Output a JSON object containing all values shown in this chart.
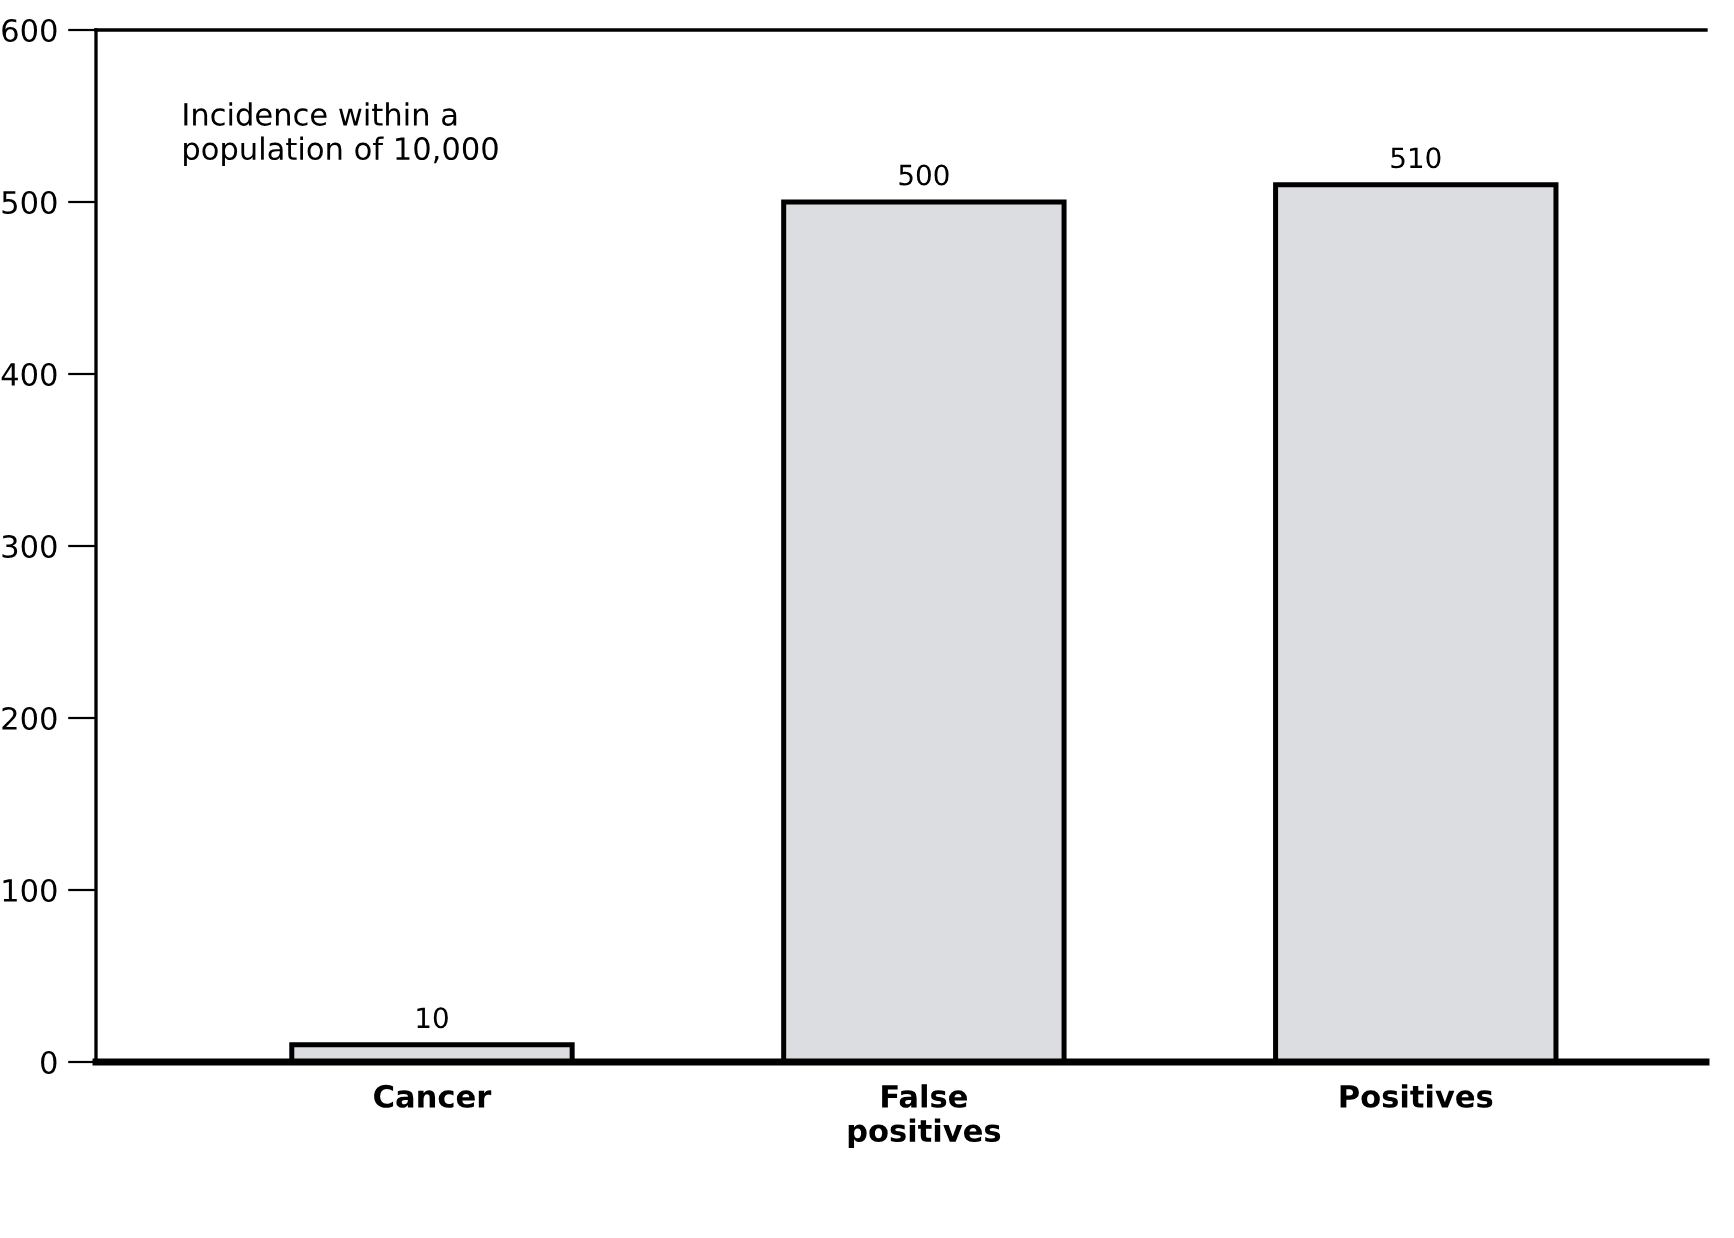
{
  "chart_data": {
    "type": "bar",
    "categories": [
      "Cancer",
      "False\npositives",
      "Positives"
    ],
    "values": [
      10,
      500,
      510
    ],
    "color": "#dcdde0",
    "ylim": [
      0,
      600
    ],
    "yticks": [
      0,
      100,
      200,
      300,
      400,
      500,
      600
    ],
    "grid": false,
    "data_labels": true,
    "annotations": [
      "Incidence within a\npopulation of 10,000"
    ]
  }
}
